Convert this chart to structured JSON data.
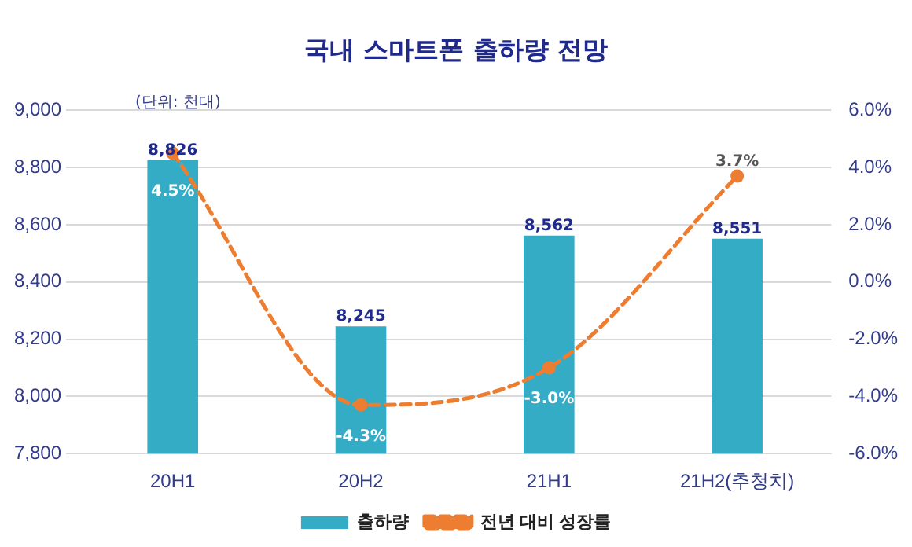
{
  "chart_data": {
    "type": "bar",
    "title": "국내 스마트폰 출하량 전망",
    "annotations": [
      "(단위: 천대)"
    ],
    "categories": [
      "20H1",
      "20H2",
      "21H1",
      "21H2(추청치)"
    ],
    "series": [
      {
        "name": "출하량",
        "color": "#35acc6",
        "values": [
          8826,
          8245,
          8562,
          8551
        ],
        "value_labels": [
          "8,826",
          "8,245",
          "8,562",
          "8,551"
        ]
      },
      {
        "name": "전년 대비 성장률",
        "type": "line",
        "axis": "y2",
        "color": "#ed7d31",
        "values": [
          4.5,
          -4.3,
          -3.0,
          3.7
        ],
        "value_labels": [
          "4.5%",
          "-4.3%",
          "-3.0%",
          "3.7%"
        ],
        "line_style": "dashed",
        "marker": "circle"
      }
    ],
    "ylim": [
      7800,
      9000
    ],
    "yticks": [
      {
        "value": 7800,
        "label": "7,800"
      },
      {
        "value": 8000,
        "label": "8,000"
      },
      {
        "value": 8200,
        "label": "8,200"
      },
      {
        "value": 8400,
        "label": "8,400"
      },
      {
        "value": 8600,
        "label": "8,600"
      },
      {
        "value": 8800,
        "label": "8,800"
      },
      {
        "value": 9000,
        "label": "9,000"
      }
    ],
    "y2lim": [
      -6,
      6
    ],
    "y2ticks": [
      {
        "value": -6,
        "label": "-6.0%"
      },
      {
        "value": -4,
        "label": "-4.0%"
      },
      {
        "value": -2,
        "label": "-2.0%"
      },
      {
        "value": 0,
        "label": "0.0%"
      },
      {
        "value": 2,
        "label": "2.0%"
      },
      {
        "value": 4,
        "label": "4.0%"
      },
      {
        "value": 6,
        "label": "6.0%"
      }
    ],
    "grid": "y",
    "legend": "bottom"
  }
}
